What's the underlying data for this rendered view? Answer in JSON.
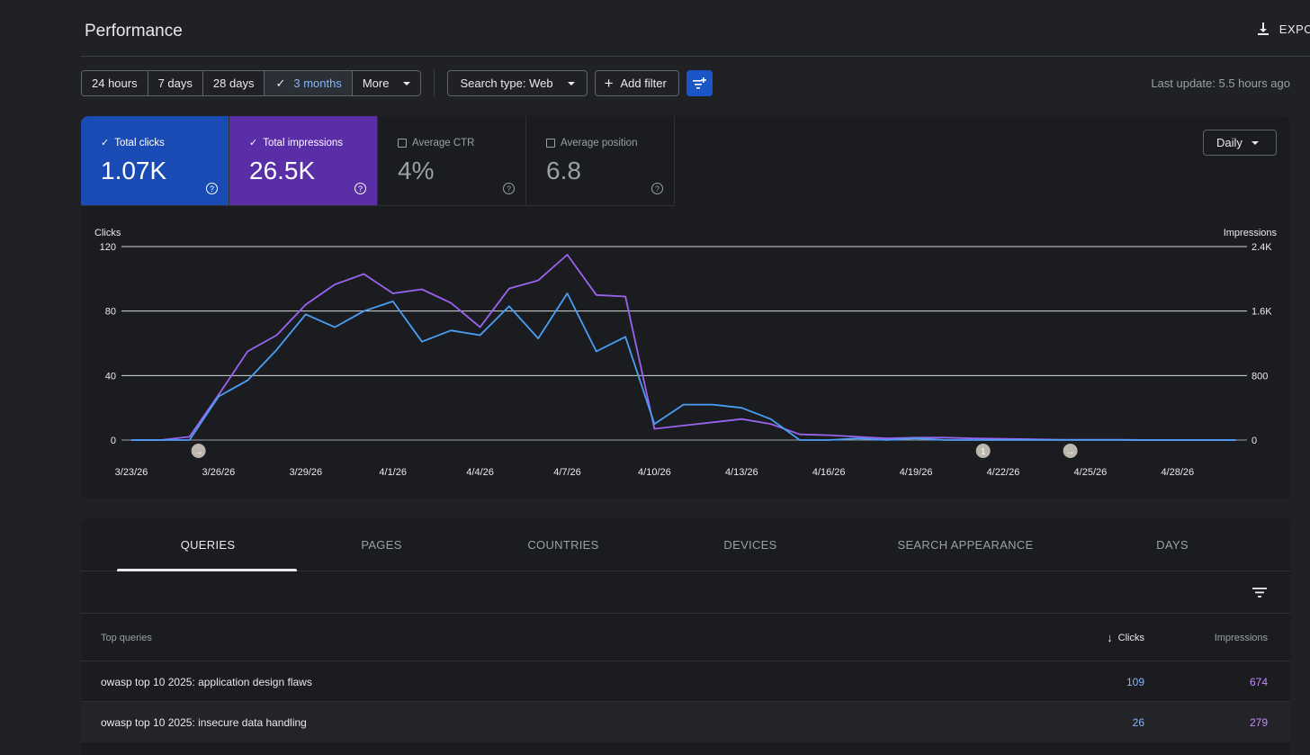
{
  "header": {
    "title": "Performance",
    "export_label": "EXPORT"
  },
  "toolbar": {
    "ranges": [
      "24 hours",
      "7 days",
      "28 days",
      "3 months",
      "More"
    ],
    "active_range": "3 months",
    "search_type": "Search type: Web",
    "add_filter": "Add filter",
    "last_update": "Last update: 5.5 hours ago"
  },
  "metrics": {
    "clicks": {
      "label": "Total clicks",
      "value": "1.07K",
      "checked": true
    },
    "impressions": {
      "label": "Total impressions",
      "value": "26.5K",
      "checked": true
    },
    "ctr": {
      "label": "Average CTR",
      "value": "4%",
      "checked": false
    },
    "position": {
      "label": "Average position",
      "value": "6.8",
      "checked": false
    }
  },
  "granularity": "Daily",
  "colors": {
    "clicks": "#4a9ff5",
    "impressions": "#9a63f0",
    "clicks_card": "#1a4bb5",
    "impressions_card": "#5a2ea6"
  },
  "chart_data": {
    "type": "line",
    "ylabel_left": "Clicks",
    "ylabel_right": "Impressions",
    "y_left_ticks": [
      "120",
      "80",
      "40",
      "0"
    ],
    "y_right_ticks": [
      "2.4K",
      "1.6K",
      "800",
      "0"
    ],
    "ylim_left": [
      0,
      120
    ],
    "ylim_right": [
      0,
      2400
    ],
    "x_tick_labels": [
      "3/23/26",
      "3/26/26",
      "3/29/26",
      "4/1/26",
      "4/4/26",
      "4/7/26",
      "4/10/26",
      "4/13/26",
      "4/16/26",
      "4/19/26",
      "4/22/26",
      "4/25/26",
      "4/28/26"
    ],
    "x_day_index_of_ticks": [
      0,
      3,
      6,
      9,
      12,
      15,
      18,
      21,
      24,
      27,
      30,
      33,
      36
    ],
    "annotations": [
      {
        "day": 2,
        "label": "→"
      },
      {
        "day": 29,
        "label": "1"
      },
      {
        "day": 32,
        "label": "→"
      }
    ],
    "series": [
      {
        "name": "Clicks",
        "values": [
          0,
          0,
          0,
          27,
          37,
          56,
          78,
          70,
          80,
          86,
          61,
          68,
          65,
          83,
          63,
          91,
          55,
          64,
          10,
          22,
          22,
          20,
          13,
          0,
          0,
          1,
          0,
          1,
          0,
          0,
          0,
          0,
          0,
          0,
          0,
          0,
          0,
          0,
          0
        ]
      },
      {
        "name": "Impressions",
        "values": [
          0,
          0,
          40,
          560,
          1100,
          1300,
          1680,
          1930,
          2060,
          1820,
          1870,
          1700,
          1400,
          1880,
          1980,
          2300,
          1800,
          1780,
          140,
          180,
          220,
          260,
          200,
          70,
          60,
          40,
          20,
          30,
          30,
          20,
          15,
          10,
          5,
          5,
          5,
          0,
          0,
          0,
          0
        ]
      }
    ]
  },
  "table": {
    "tabs": [
      "QUERIES",
      "PAGES",
      "COUNTRIES",
      "DEVICES",
      "SEARCH APPEARANCE",
      "DAYS"
    ],
    "active_tab": "QUERIES",
    "columns": {
      "query": "Top queries",
      "clicks": "Clicks",
      "impressions": "Impressions"
    },
    "rows": [
      {
        "query": "owasp top 10 2025: application design flaws",
        "clicks": "109",
        "impressions": "674"
      },
      {
        "query": "owasp top 10 2025: insecure data handling",
        "clicks": "26",
        "impressions": "279"
      }
    ]
  }
}
